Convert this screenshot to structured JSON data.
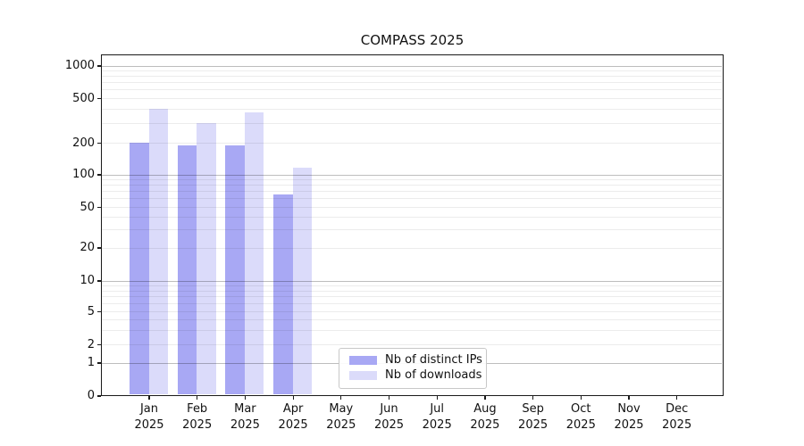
{
  "chart_data": {
    "type": "bar",
    "title": "COMPASS 2025",
    "categories": [
      "Jan",
      "Feb",
      "Mar",
      "Apr",
      "May",
      "Jun",
      "Jul",
      "Aug",
      "Sep",
      "Oct",
      "Nov",
      "Dec"
    ],
    "year_label": "2025",
    "series": [
      {
        "name": "Nb of distinct IPs",
        "color": "#a8a8f4",
        "values": [
          200,
          190,
          190,
          65,
          null,
          null,
          null,
          null,
          null,
          null,
          null,
          null
        ]
      },
      {
        "name": "Nb of downloads",
        "color": "#dbdbfa",
        "values": [
          400,
          300,
          370,
          115,
          null,
          null,
          null,
          null,
          null,
          null,
          null,
          null
        ]
      }
    ],
    "yscale": "symlog",
    "ylim": [
      0,
      1300
    ],
    "y_ticks": [
      0,
      1,
      2,
      5,
      10,
      20,
      50,
      100,
      200,
      500,
      1000
    ],
    "y_major_gridlines": [
      1,
      10,
      100,
      1000
    ],
    "y_minor_gridlines": [
      2,
      3,
      4,
      5,
      6,
      7,
      8,
      9,
      20,
      30,
      40,
      50,
      60,
      70,
      80,
      90,
      200,
      300,
      400,
      500,
      600,
      700,
      800,
      900
    ],
    "grid": "both",
    "legend_position": "lower-center"
  }
}
